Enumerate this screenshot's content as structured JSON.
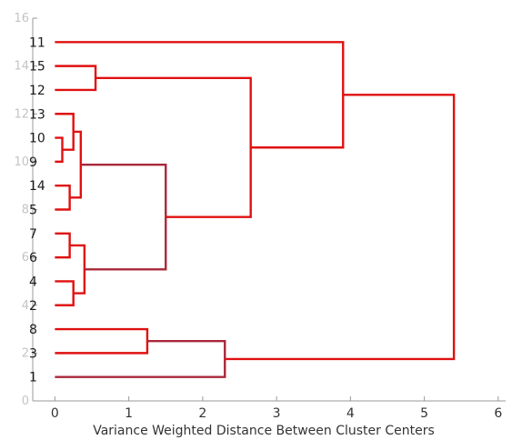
{
  "chart_data": {
    "type": "dendrogram",
    "xlabel": "Variance Weighted Distance Between Cluster Centers",
    "xlim": [
      -0.3,
      6.1
    ],
    "ylim": [
      0,
      16
    ],
    "xticks": [
      0,
      1,
      2,
      3,
      4,
      5,
      6
    ],
    "yticks": [
      0,
      2,
      4,
      6,
      8,
      10,
      12,
      14,
      16
    ],
    "colors": {
      "red": "#e01010",
      "dark_red": "#a8283a"
    },
    "leaf_order_top_to_bottom": [
      "11",
      "15",
      "12",
      "13",
      "10",
      "9",
      "14",
      "5",
      "7",
      "6",
      "4",
      "2",
      "8",
      "3",
      "1"
    ],
    "leaves": [
      {
        "label": "11",
        "y": 15
      },
      {
        "label": "15",
        "y": 14
      },
      {
        "label": "12",
        "y": 13
      },
      {
        "label": "13",
        "y": 12
      },
      {
        "label": "10",
        "y": 11
      },
      {
        "label": "9",
        "y": 10
      },
      {
        "label": "14",
        "y": 9
      },
      {
        "label": "5",
        "y": 8
      },
      {
        "label": "7",
        "y": 7
      },
      {
        "label": "6",
        "y": 6
      },
      {
        "label": "4",
        "y": 5
      },
      {
        "label": "2",
        "y": 4
      },
      {
        "label": "8",
        "y": 3
      },
      {
        "label": "3",
        "y": 2
      },
      {
        "label": "1",
        "y": 1
      }
    ],
    "merges": [
      {
        "a": "10",
        "b": "9",
        "distance": 0.1,
        "color": "red"
      },
      {
        "a": "14",
        "b": "5",
        "distance": 0.2,
        "color": "red"
      },
      {
        "a": "7",
        "b": "6",
        "distance": 0.2,
        "color": "red"
      },
      {
        "a": "4",
        "b": "2",
        "distance": 0.25,
        "color": "red"
      },
      {
        "a": "13",
        "b": "c1",
        "distance": 0.25,
        "color": "red"
      },
      {
        "a": "c5",
        "b": "c2",
        "distance": 0.35,
        "color": "red"
      },
      {
        "a": "c3",
        "b": "c4",
        "distance": 0.4,
        "color": "red"
      },
      {
        "a": "15",
        "b": "12",
        "distance": 0.55,
        "color": "red"
      },
      {
        "a": "8",
        "b": "3",
        "distance": 1.25,
        "color": "red"
      },
      {
        "a": "c6",
        "b": "c7",
        "distance": 1.5,
        "color": "dark_red"
      },
      {
        "a": "c9",
        "b": "1",
        "distance": 2.3,
        "color": "dark_red"
      },
      {
        "a": "c8",
        "b": "c10",
        "distance": 2.65,
        "color": "red"
      },
      {
        "a": "11",
        "b": "c12",
        "distance": 3.9,
        "color": "red"
      },
      {
        "a": "c13",
        "b": "c11",
        "distance": 5.4,
        "color": "red"
      }
    ]
  }
}
